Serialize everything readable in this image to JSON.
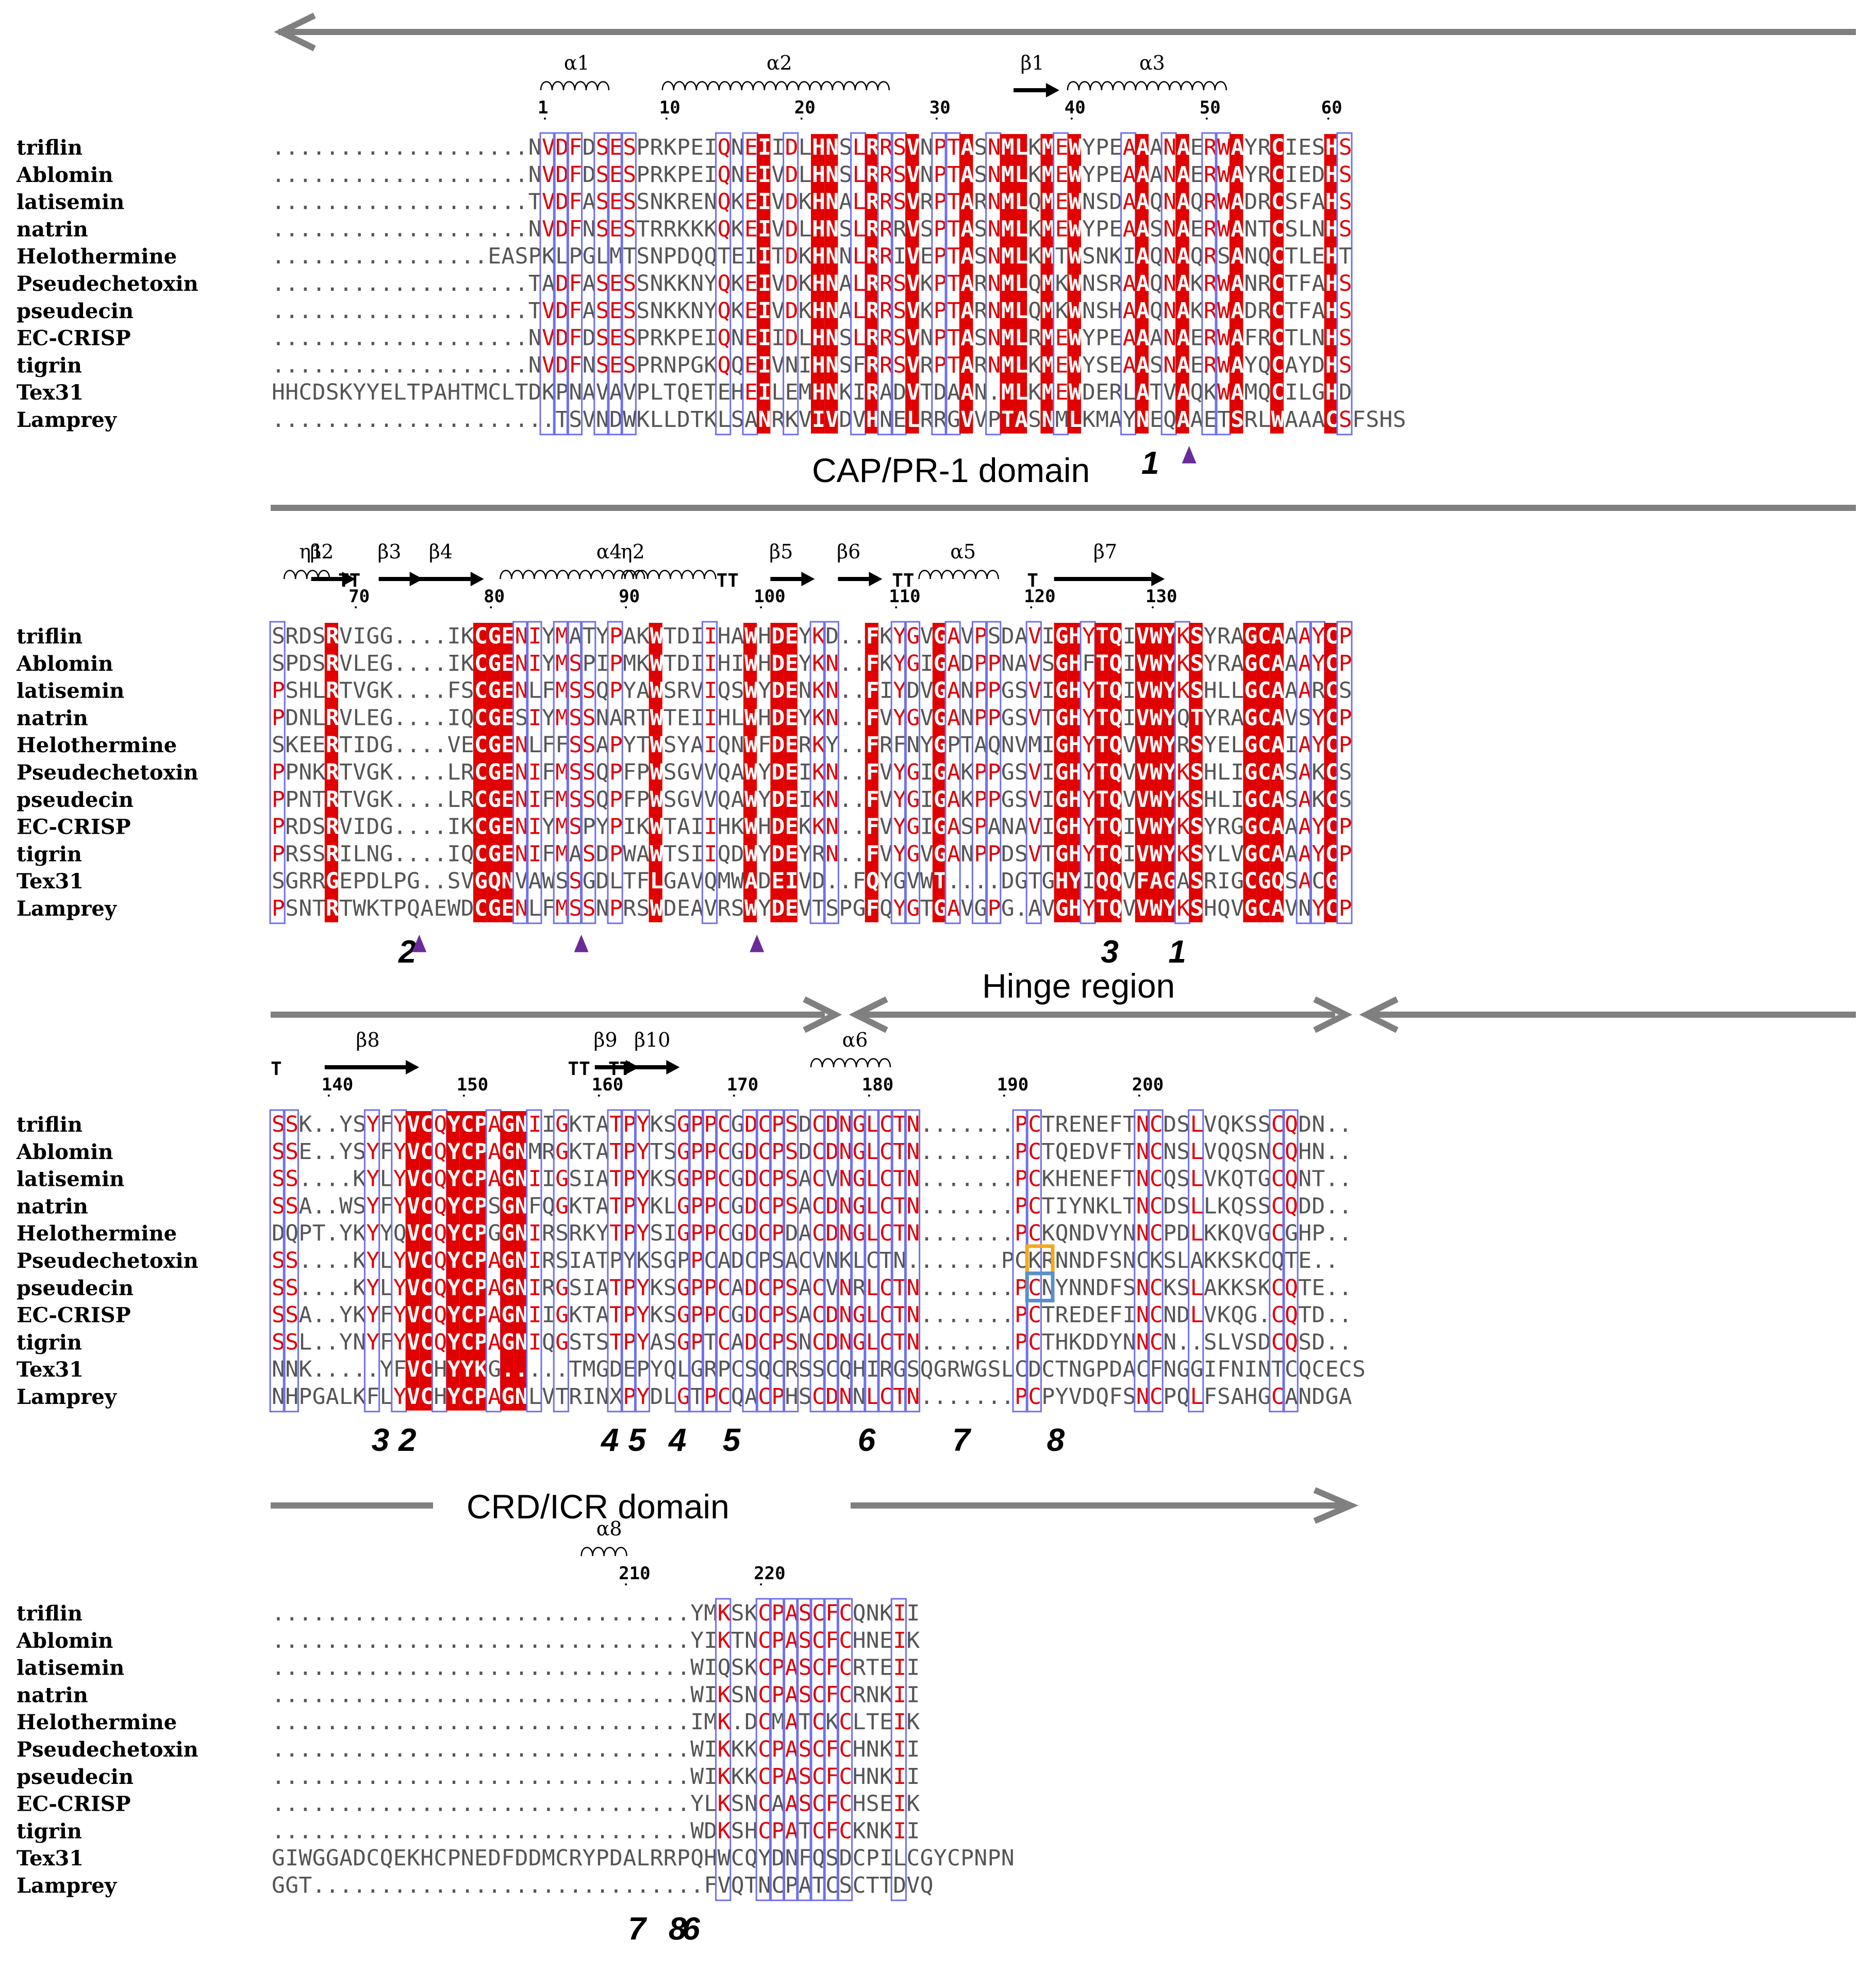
{
  "alignment": {
    "species": [
      "triflin",
      "Ablomin",
      "latisemin",
      "natrin",
      "Helothermine",
      "Pseudechetoxin",
      "pseudecin",
      "EC-CRISP",
      "tigrin",
      "Tex31",
      "Lamprey"
    ],
    "blocks": [
      {
        "rows": [
          "...................NVDFDSESPRKPEIQNEIIDLHNSLRRSVNPTASNMLKMEWYPEAAANAERWAYRCIESHS",
          "...................NVDFDSESPRKPEIQNEIVDLHNSLRRSVNPTASNMLKMEWYPEAAANAERWAYRCIEDHS",
          "...................TVDFASESSNKRENQKEIVDKHNALRRSVRPTARNMLQMEWNSDAAQNAQRWADRCSFAHS",
          "...................NVDFNSESTRRKKKQKEIVDLHNSLRRRVSPTASNMLKMEWYPEAASNAERWANTCSLNHS",
          "................EASPKLPGLMTSNPDQQTEIITDKHNNLRRIVEPTASNMLKMTWSNKIAQNAQRSANQCTLEHT",
          "...................TADFASESSNKKNYQKEIVDKHNALRRSVKPTARNMLQMKWNSRAAQNAKRWANRCTFAHS",
          "...................TVDFASESSNKKNYQKEIVDKHNALRRSVKPTARNMLQMKWNSHAAQNAKRWADRCTFAHS",
          "...................NVDFDSESPRKPEIQNEIIDLHNSLRRSVNPTASNMLRMEWYPEAAANAERWAFRCTLNHS",
          "...................NVDFNSESPRNPGKQQEIVNIHNSFRRSVRPTARNMLKMEWYSEAASNAERWAYQCAYDHS",
          "HHCDSKYYELTPAHTMCLTDKPNAVAVPLTQETEHEILEMHNKIRADVTDAAN.MLKMEWDERLATVAQKWAMQCILGHD",
          ".....................TSVNDWKLLDTKLSANRKVIVDVHNELRRGVVPTASNMLKMAYNEQAAETSRLWAAACSFSHS"
        ],
        "numbers": [
          "1",
          "10",
          "20",
          "30",
          "40",
          "50",
          "60"
        ],
        "ss": [
          "α1",
          "α2",
          "β1",
          "α3"
        ],
        "marks": [
          "1"
        ]
      },
      {
        "rows": [
          "SRDSRVIGG....IKCGENIYMATYPAKWTDIIHAWHDEYKD..FKYGVGAVPSDAVIGHYTQIVWYKSYRAGCAAAYCP",
          "SPDSRVLEG....IKCGENIYMSPIPMKWTDIIHIWHDEYKN..FKYGIGADPPNAVSGHFTQIVWYKSYRAGCAAAYCP",
          "PSHLRTVGK....FSCGENLFMSSQPYAWSRVIQSWYDENKN..FIYDVGANPPGSVIGHYTQIVWYKSHLLGCAAARCS",
          "PDNLRVLEG....IQCGESIYMSSNARTWTEIIHLWHDEYKN..FVYGVGANPPGSVTGHYTQIVWYQTYRAGCAVSYCP",
          "SKEERTIDG....VECGENLFFSSAPYTWSYAIQNWFDERKY..FRFNYGPTAQNVMIGHYTQVVWYRSYELGCAIAYCP",
          "PPNKRTVGK....LRCGENIFMSSQPFPWSGVVQAWYDEIKN..FVYGIGAKPPGSVIGHYTQVVWYKSHLIGCASAKCS",
          "PPNTRTVGK....LRCGENIFMSSQPFPWSGVVQAWYDEIKN..FVYGIGAKPPGSVIGHYTQVVWYKSHLIGCASAKCS",
          "PRDSRVIDG....IKCGENIYMSPYPIKWTAIIHKWHDEKKN..FVYGIGASPANAVIGHYTQIVWYKSYRGGCAAAYCP",
          "PRSSRILNG....IQCGENIFMASDPWAWTSIIQDWYDEYRN..FVYGVGANPPDSVTGHYTQIVWYKSYLVGCAAAYCP",
          "SGRRGEPDLPG..SVGQNVAWSSGDLTFLGAVQMWADEIVD..FQYGVWT....DGTGHYIQQVFAGASRIGCGQSACG",
          "PSNTRTWKTPQAEWDCGENLFMSSNPRSWDEAVRSWYDEVTSPGFQYGTGAVGPG.AVGHYTQVVWYKSHQVGCAVNYCP"
        ],
        "numbers": [
          "70",
          "80",
          "90",
          "100",
          "110",
          "120",
          "130"
        ],
        "ss": [
          "η1",
          "β2",
          "β3",
          "β4",
          "α4",
          "η2",
          "β5",
          "β6",
          "α5",
          "β7"
        ],
        "tt": [
          "TT",
          "TT",
          "TT",
          "T"
        ],
        "marks": [
          "2",
          "3",
          "1"
        ]
      },
      {
        "rows": [
          "SSK..YSYFYVCQYCPAGNIIGKTATPYKSGPPCGDCPSDCDNGLCTN.......PCTRENEFTNCDSLVQKSSCQDN..",
          "SSE..YSYFYVCQYCPAGNMRGKTATPYTSGPPCGDCPSDCDNGLCTN.......PCTQEDVFTNCNSLVQQSNCQHN..",
          "SS....KYLYVCQYCPAGNIIGSIATPYKSGPPCGDCPSACVNGLCTN.......PCKHENEFTNCQSLVKQTGCQNT..",
          "SSA..WSYFYVCQYCPSGNFQGKTATPYKLGPPCGDCPSACDNGLCTN.......PCTIYNKLTNCDSLLKQSSCQDD..",
          "DQPT.YKYYQVCQYCPGGNIRSRKYTPYSIGPPCGDCPDACDNGLCTN.......PCKQNDVYNNCPDLKKQVGCGHP..",
          "SS....KYLYVCQYCPAGNIRSIATPYKSGPPCADCPSACVNKLCTN.......PCKRNNDFSNCKSLAKKSKCQTE..",
          "SS....KYLYVCQYCPAGNIRGSIATPYKSGPPCADCPSACVNRLCTN.......PCNYNNDFSNCKSLAKKSKCQTE..",
          "SSA..YKYFYVCQYCPAGNIIGKTATPYKSGPPCGDCPSACDNGLCTN.......PCTREDEFINCNDLVKQG.CQTD..",
          "SSL..YNYFYVCQYCPAGNIQGSTSTPYASGPTCADCPSNCDNGLCTN.......PCTHKDDYNNCN..SLVSDCQSD..",
          "NNK.....YFVCHYYKG.....TMGDEPYQLGRPCSQCRSSCQHIRGSQGRWGSLCDCTNGPDACFNGGIFNINTCQCECS",
          "NHPGALKFLYVCHYCPAGNLVTRINXPYDLGTPCQACPHSCDNNLCTN.......PCPYVDQFSNCPQLFSAHGCANDGA"
        ],
        "numbers": [
          "140",
          "150",
          "160",
          "170",
          "180",
          "190",
          "200"
        ],
        "ss": [
          "β8",
          "β9",
          "β10",
          "α6"
        ],
        "tt": [
          "T",
          "TT",
          "TT"
        ],
        "marks": [
          "3",
          "2",
          "4",
          "5",
          "4",
          "5",
          "6",
          "7",
          "8"
        ]
      },
      {
        "rows": [
          "...............................YMKSKCPASCFCQNKII",
          "...............................YIKTNCPASCFCHNEIK",
          "...............................WIQSKCPASCFCRTEII",
          "...............................WIKSNCPASCFCRNKII",
          "...............................IMK.DCMATCKCLTEIK",
          "...............................WIKKKCPASCFCHNKII",
          "...............................WIKKKCPASCFCHNKII",
          "...............................YLKSNCAASCFCHSEIK",
          "...............................WDKSHCPATCFCKNKII",
          "GIWGGADCQEKHCPNEDFDDMCRYPDALRRPQHWCQYDNFQSDCPILCGYCPNPN",
          "GGT.............................FVQTNCPATCSCTTDVQ"
        ],
        "numbers": [
          "210",
          "220"
        ],
        "ss": [
          "α8"
        ],
        "marks": [
          "7",
          "8",
          "6"
        ]
      }
    ]
  },
  "annotations": {
    "cap_domain": "CAP/PR-1 domain",
    "hinge": "Hinge region",
    "crd_domain": "CRD/ICR domain"
  },
  "colors": {
    "identical_bg": "#e00000",
    "similar_text": "#e00000",
    "box": "#7070ee",
    "arrow": "#808080",
    "triangle": "#6a2c9a",
    "orange_box": "#f2a81d",
    "blue_box": "#5a8fc8"
  }
}
